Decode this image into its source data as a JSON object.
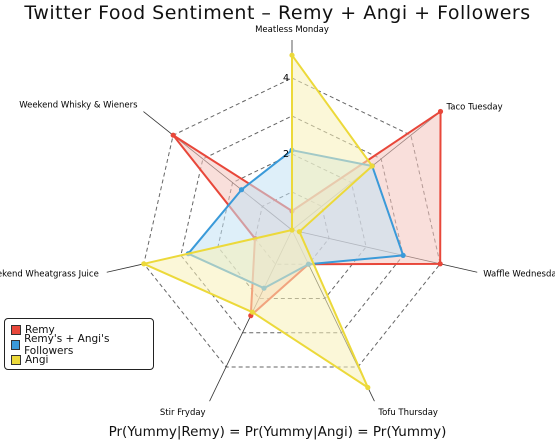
{
  "chart_data": {
    "type": "radar",
    "title": "Twitter Food Sentiment – Remy + Angi + Followers",
    "caption": "Pr(Yummy|Remy) = Pr(Yummy|Angi) = Pr(Yummy)",
    "categories": [
      "Meatless Monday",
      "Taco Tuesday",
      "Waffle Wednesday",
      "Tofu Thursday",
      "Stir Fryday",
      "Weekend Wheatgrass Juice",
      "Weekend Whisky & Wieners"
    ],
    "rlim": [
      0,
      5
    ],
    "r_ticks": [
      2,
      4
    ],
    "grid": true,
    "legend_position": "bottom-left",
    "series": [
      {
        "name": "Remy",
        "color": "#e8473a",
        "fill": "#f4c4bd",
        "values": [
          0.5,
          5.0,
          4.0,
          1.0,
          2.5,
          1.0,
          4.0
        ]
      },
      {
        "name": "Remy's + Angi's Followers",
        "color": "#3a9ad9",
        "fill": "#c2e1f4",
        "values": [
          2.1,
          2.7,
          3.0,
          1.0,
          1.7,
          2.8,
          1.7
        ]
      },
      {
        "name": "Angi",
        "color": "#ecd93a",
        "fill": "#f8f0b8",
        "values": [
          4.6,
          2.7,
          0.2,
          4.6,
          2.4,
          4.0,
          0.0
        ]
      }
    ]
  }
}
